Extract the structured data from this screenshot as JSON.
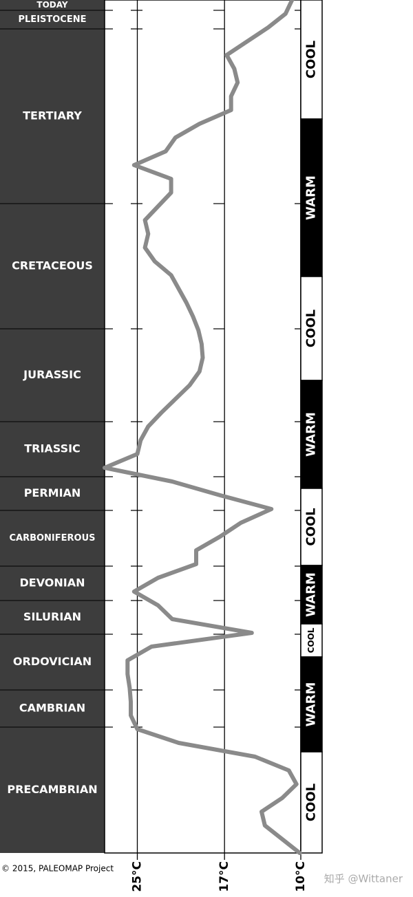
{
  "chart_data": {
    "type": "line",
    "periods": [
      "TODAY",
      "PLEISTOCENE",
      "TERTIARY",
      "CRETACEOUS",
      "JURASSIC",
      "TRIASSIC",
      "PERMIAN",
      "CARBONIFEROUS",
      "DEVONIAN",
      "SILURIAN",
      "ORDOVICIAN",
      "CAMBRIAN",
      "PRECAMBRIAN"
    ],
    "climate_bands": [
      "COOL",
      "WARM",
      "COOL",
      "WARM",
      "COOL",
      "WARM",
      "COOL",
      "WARM",
      "COOL"
    ],
    "series": [
      {
        "color": "#8a8a8a",
        "values": [
          10.8,
          11.4,
          13.0,
          14.9,
          16.8,
          16.1,
          15.8,
          16.4,
          16.4,
          19.3,
          21.5,
          22.4,
          25.3,
          21.9,
          21.9,
          23.1,
          24.3,
          24.0,
          24.3,
          23.4,
          21.9,
          21.2,
          20.5,
          19.9,
          19.4,
          19.1,
          19.0,
          19.3,
          20.2,
          21.5,
          22.8,
          24.0,
          24.7,
          25.0,
          28.0,
          21.8,
          17.4,
          12.7,
          15.5,
          17.4,
          19.6,
          19.6,
          23.1,
          25.3,
          23.1,
          21.8,
          14.5,
          23.7,
          25.9,
          25.9,
          25.7,
          25.6,
          25.6,
          25.0,
          21.2,
          14.2,
          11.1,
          10.4,
          11.7,
          13.6,
          13.3,
          11.7,
          10.1
        ]
      }
    ],
    "xlim": [
      28,
      10
    ],
    "xticks": [
      {
        "value": 25,
        "label": "25°C"
      },
      {
        "value": 17,
        "label": "17°C"
      },
      {
        "value": 10,
        "label": "10°C"
      }
    ],
    "grid": true,
    "credit": "© 2015, PALEOMAP Project",
    "watermark": "知乎 @Wittaner"
  }
}
